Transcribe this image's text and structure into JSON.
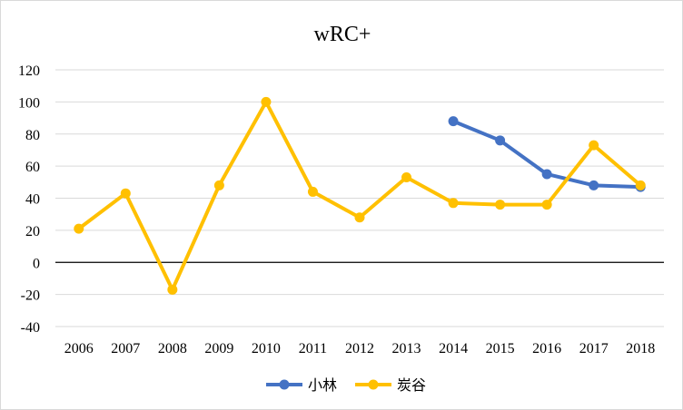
{
  "chart_data": {
    "type": "line",
    "title": "wRC+",
    "xlabel": "",
    "ylabel": "",
    "ylim": [
      -40,
      120
    ],
    "ytick_step": 20,
    "grid": true,
    "legend": "bottom",
    "categories": [
      "2006",
      "2007",
      "2008",
      "2009",
      "2010",
      "2011",
      "2012",
      "2013",
      "2014",
      "2015",
      "2016",
      "2017",
      "2018"
    ],
    "series": [
      {
        "name": "小林",
        "color": "#4472C4",
        "values": [
          null,
          null,
          null,
          null,
          null,
          null,
          null,
          null,
          88,
          76,
          55,
          48,
          47
        ]
      },
      {
        "name": "炭谷",
        "color": "#FFC000",
        "values": [
          21,
          43,
          -17,
          48,
          100,
          44,
          28,
          53,
          37,
          36,
          36,
          73,
          48
        ]
      }
    ]
  }
}
